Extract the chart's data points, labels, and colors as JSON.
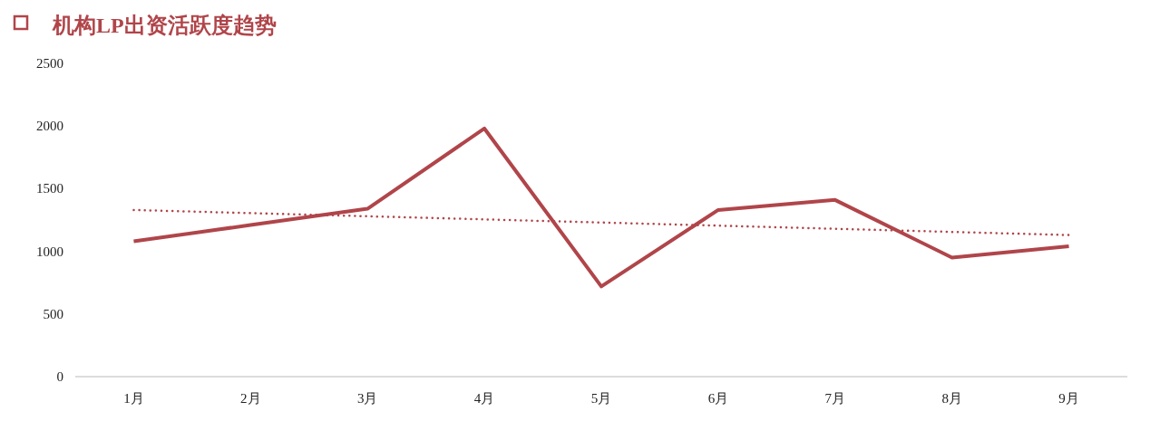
{
  "chart_data": {
    "type": "line",
    "title": "机构LP出资活跃度趋势",
    "categories": [
      "1月",
      "2月",
      "3月",
      "4月",
      "5月",
      "6月",
      "7月",
      "8月",
      "9月"
    ],
    "series": [
      {
        "color": "#b0454a",
        "values": [
          1080,
          1210,
          1340,
          1980,
          720,
          1330,
          1410,
          950,
          1040
        ]
      },
      {
        "type": "line",
        "color": "#b0454a",
        "line_style": "dotted",
        "values": [
          1330,
          1305,
          1280,
          1255,
          1230,
          1205,
          1180,
          1155,
          1130
        ]
      }
    ],
    "ylim": [
      0,
      2500
    ],
    "yticks": [
      0,
      500,
      1000,
      1500,
      2000,
      2500
    ],
    "grid": false
  }
}
